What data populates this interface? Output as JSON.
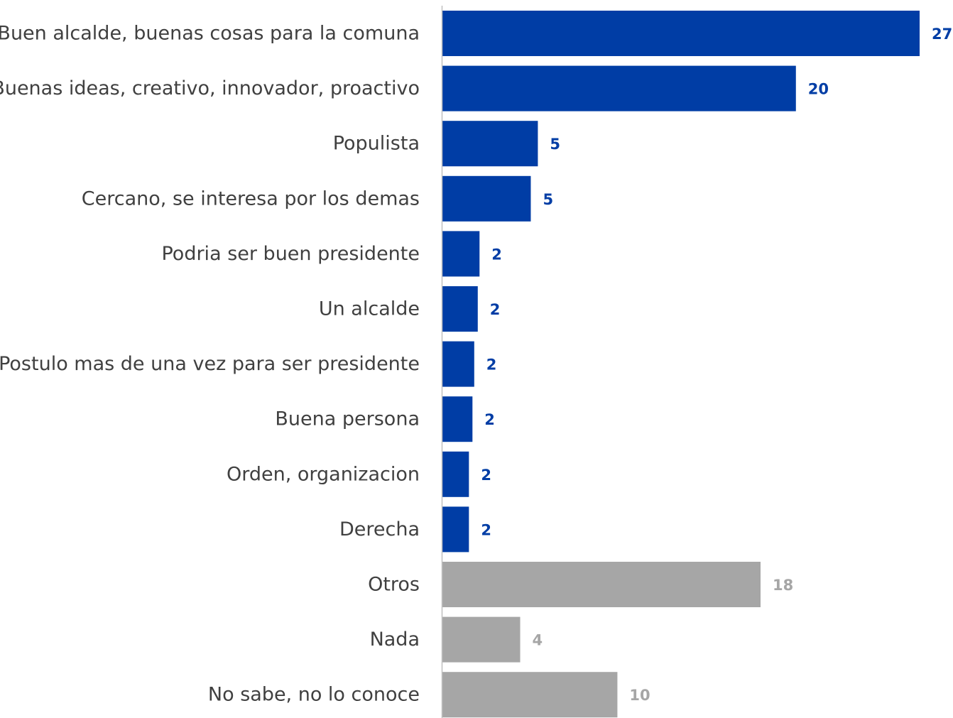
{
  "chart_data": {
    "type": "bar",
    "orientation": "horizontal",
    "title": "",
    "xlabel": "",
    "ylabel": "",
    "categories": [
      "Buen alcalde, buenas cosas para la comuna",
      "Buenas ideas, creativo, innovador, proactivo",
      "Populista",
      "Cercano, se interesa por los demas",
      "Podria ser buen presidente",
      "Un alcalde",
      "Postulo mas de una vez para ser presidente",
      "Buena persona",
      "Orden, organizacion",
      "Derecha",
      "Otros",
      "Nada",
      "No sabe, no lo conoce"
    ],
    "values": [
      27,
      20,
      5,
      5,
      2,
      2,
      2,
      2,
      2,
      2,
      18,
      4,
      10
    ],
    "value_labels": [
      "27",
      "20",
      "5",
      "5",
      "2",
      "2",
      "2",
      "2",
      "2",
      "2",
      "18",
      "4",
      "10"
    ],
    "bar_values_precise": [
      27.0,
      20.0,
      5.4,
      5.0,
      2.1,
      2.0,
      1.8,
      1.7,
      1.5,
      1.5,
      18.0,
      4.4,
      9.9
    ],
    "bar_colors": [
      "#003DA5",
      "#003DA5",
      "#003DA5",
      "#003DA5",
      "#003DA5",
      "#003DA5",
      "#003DA5",
      "#003DA5",
      "#003DA5",
      "#003DA5",
      "#A6A6A6",
      "#A6A6A6",
      "#A6A6A6"
    ],
    "xlim": [
      0,
      27
    ],
    "grid": false,
    "legend": "none",
    "colors": {
      "primary": "#003DA5",
      "secondary": "#A6A6A6",
      "axis": "#BFBFBF",
      "label_text": "#404040"
    }
  }
}
